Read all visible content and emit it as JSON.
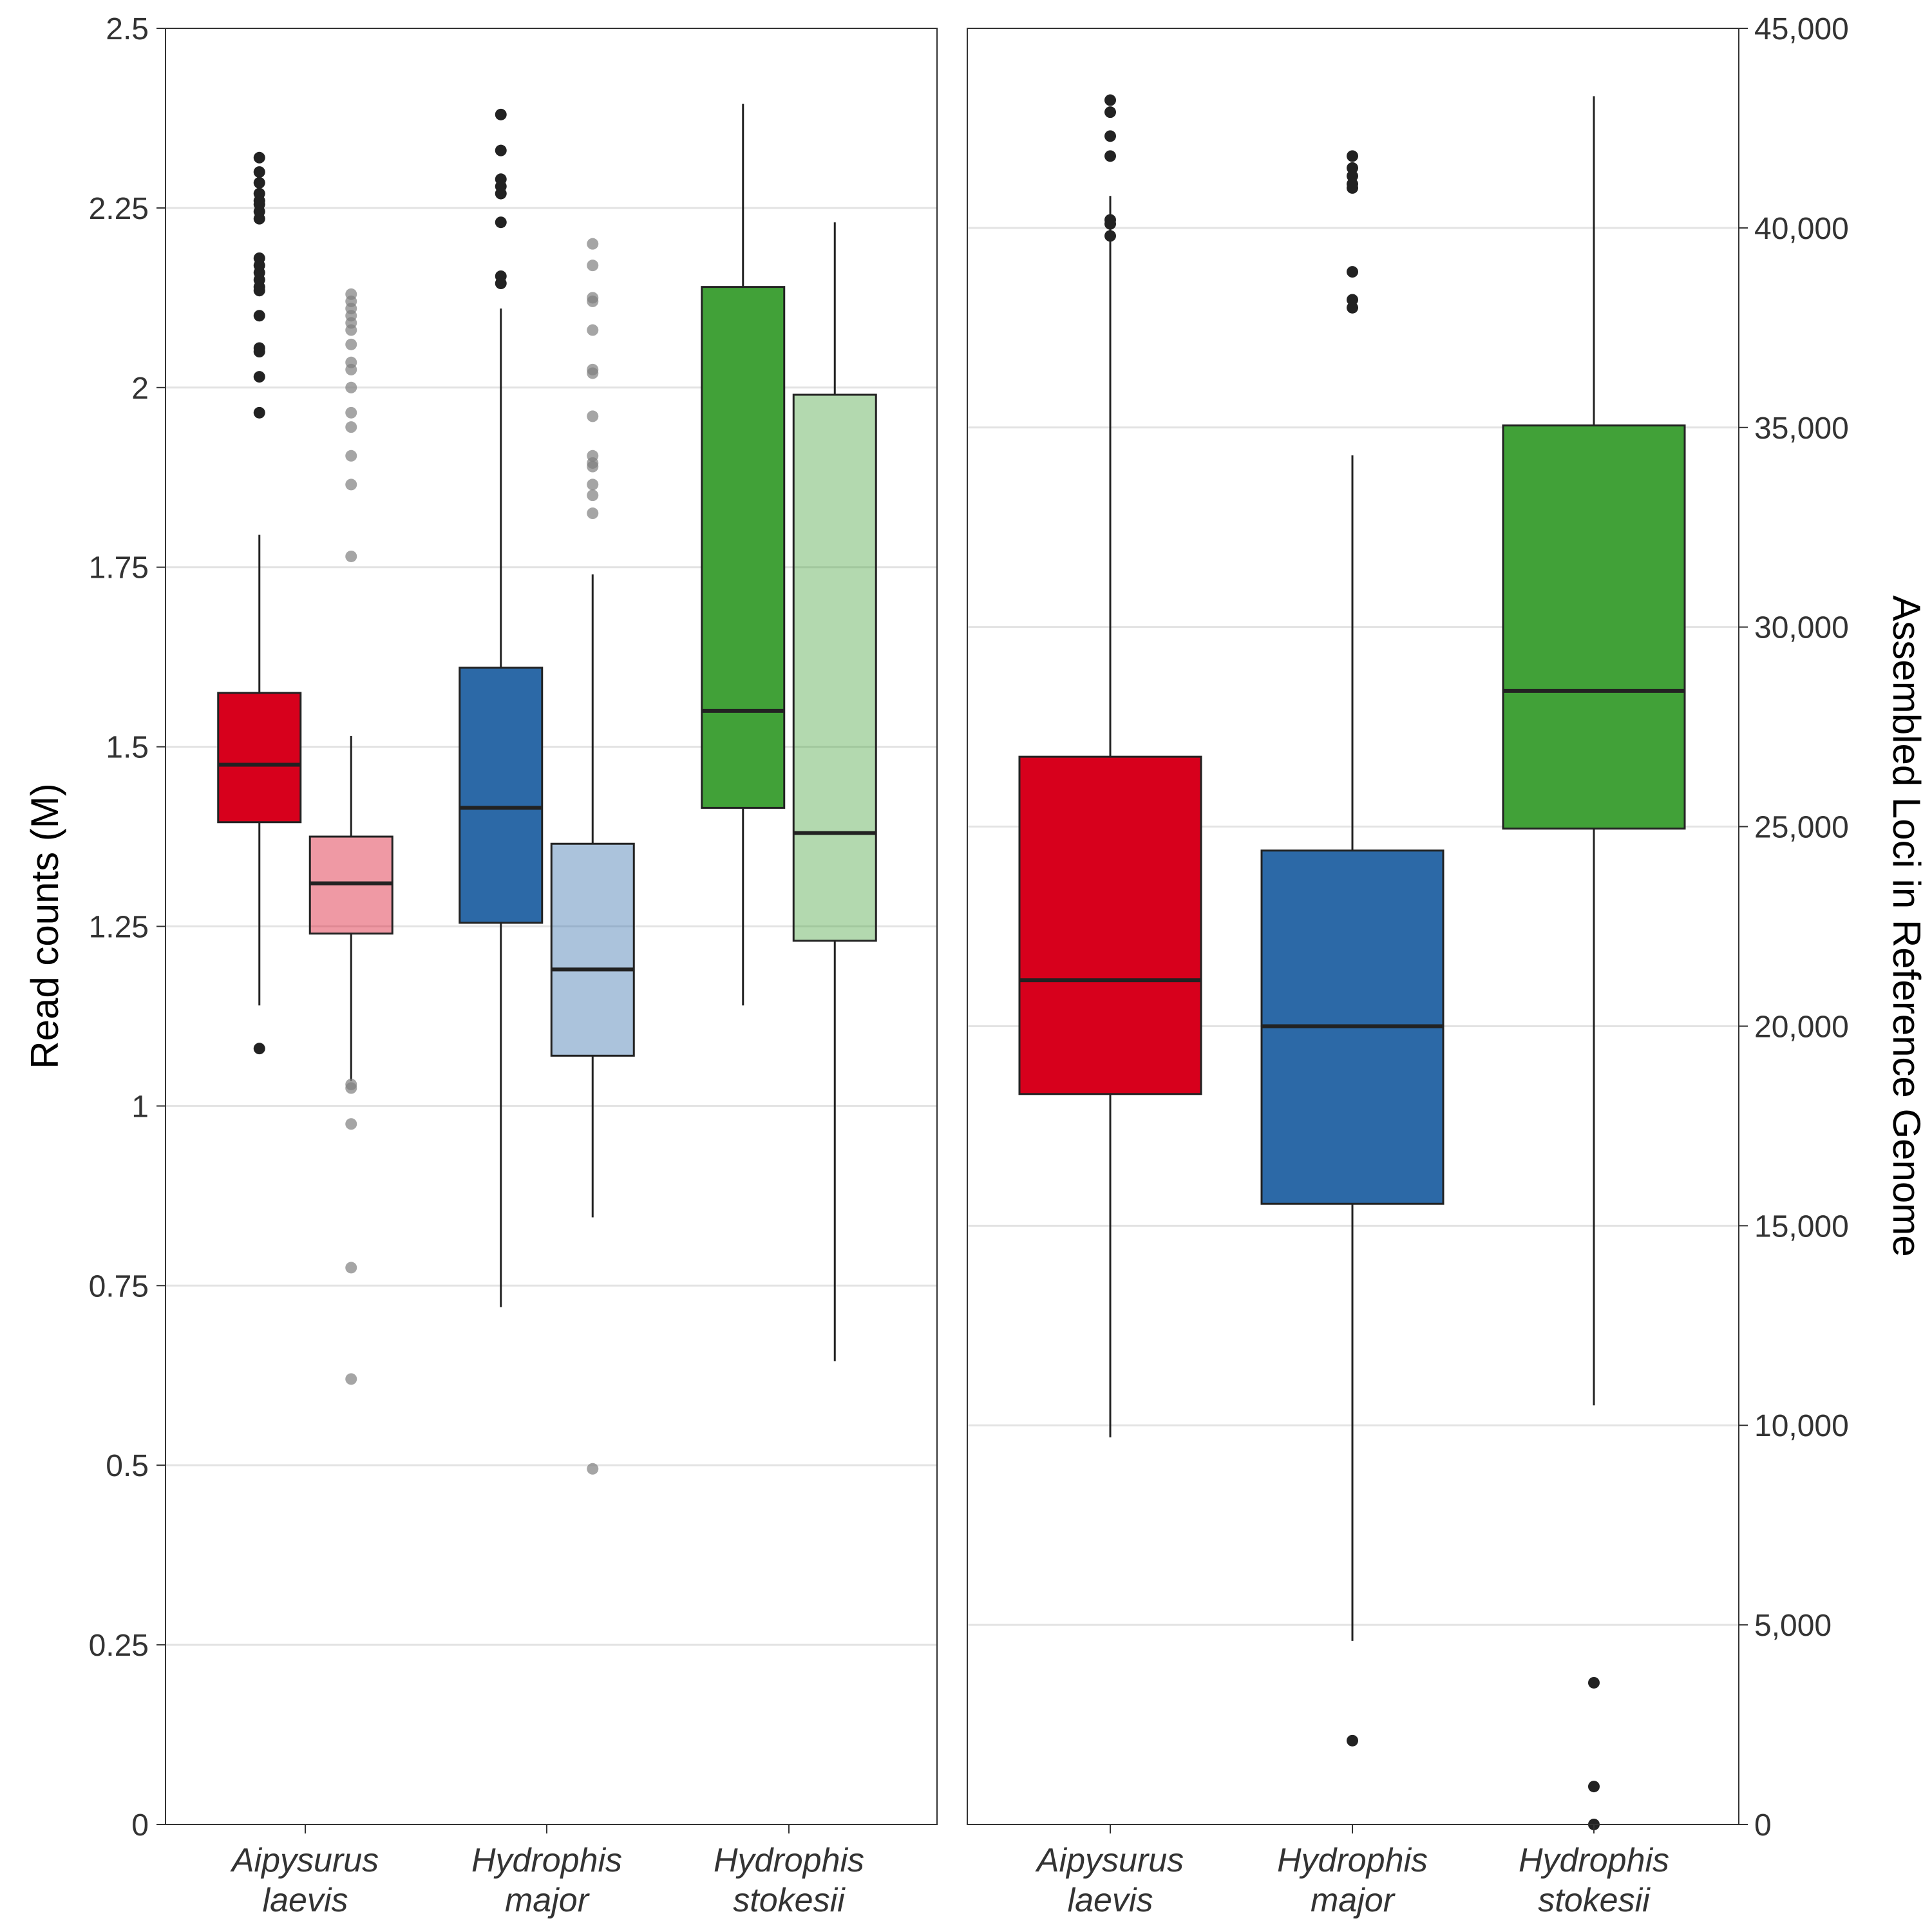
{
  "chart_data": [
    {
      "type": "box",
      "panel": "left",
      "title": "",
      "ylabel": "Read counts (M)",
      "ylim": [
        0,
        2.5
      ],
      "yticks": [
        "0",
        "0.25",
        "0.5",
        "0.75",
        "1",
        "1.25",
        "1.5",
        "1.75",
        "2",
        "2.25",
        "2.5"
      ],
      "ytick_values": [
        0,
        0.25,
        0.5,
        0.75,
        1,
        1.25,
        1.5,
        1.75,
        2,
        2.25,
        2.5
      ],
      "grid": true,
      "categories": [
        {
          "line1": "Aipysurus",
          "line2": "laevis"
        },
        {
          "line1": "Hydrophis",
          "line2": "major"
        },
        {
          "line1": "Hydrophis",
          "line2": "stokesii"
        }
      ],
      "series": [
        {
          "fill": [
            "#D7001C",
            "#2C69A7",
            "#41A138"
          ],
          "opacity": 1,
          "outlier_color": "#222222",
          "offset": -0.19,
          "boxes": [
            {
              "lower_whisker": 1.14,
              "q1": 1.395,
              "median": 1.475,
              "q3": 1.575,
              "upper_whisker": 1.795,
              "outliers": [
                1.08,
                1.965,
                2.015,
                2.05,
                2.055,
                2.1,
                2.135,
                2.14,
                2.15,
                2.16,
                2.17,
                2.18,
                2.235,
                2.245,
                2.255,
                2.26,
                2.27,
                2.285,
                2.3,
                2.32
              ]
            },
            {
              "lower_whisker": 0.72,
              "q1": 1.255,
              "median": 1.415,
              "q3": 1.61,
              "upper_whisker": 2.11,
              "outliers": [
                2.145,
                2.155,
                2.23,
                2.27,
                2.28,
                2.29,
                2.33,
                2.38
              ]
            },
            {
              "lower_whisker": 1.14,
              "q1": 1.415,
              "median": 1.55,
              "q3": 2.14,
              "upper_whisker": 2.395,
              "outliers": []
            }
          ]
        },
        {
          "fill": [
            "#D7001C",
            "#2C69A7",
            "#41A138"
          ],
          "opacity": 0.4,
          "outlier_color": "#7F7F7F",
          "offset": 0.19,
          "boxes": [
            {
              "lower_whisker": 1.035,
              "q1": 1.24,
              "median": 1.31,
              "q3": 1.375,
              "upper_whisker": 1.515,
              "outliers": [
                0.62,
                0.775,
                0.975,
                1.025,
                1.03,
                1.765,
                1.865,
                1.905,
                1.945,
                1.965,
                2.0,
                2.025,
                2.035,
                2.06,
                2.08,
                2.09,
                2.1,
                2.11,
                2.12,
                2.13
              ]
            },
            {
              "lower_whisker": 0.845,
              "q1": 1.07,
              "median": 1.19,
              "q3": 1.365,
              "upper_whisker": 1.74,
              "outliers": [
                0.495,
                1.825,
                1.85,
                1.865,
                1.89,
                1.895,
                1.905,
                1.96,
                2.02,
                2.025,
                2.08,
                2.12,
                2.125,
                2.17,
                2.2
              ]
            },
            {
              "lower_whisker": 0.645,
              "q1": 1.23,
              "median": 1.38,
              "q3": 1.99,
              "upper_whisker": 2.23,
              "outliers": []
            }
          ]
        }
      ]
    },
    {
      "type": "box",
      "panel": "right",
      "title": "",
      "ylabel": "Assembled Loci in Reference Genome",
      "ylim": [
        0,
        45000
      ],
      "yticks": [
        "0",
        "5,000",
        "10,000",
        "15,000",
        "20,000",
        "25,000",
        "30,000",
        "35,000",
        "40,000",
        "45,000"
      ],
      "ytick_values": [
        0,
        5000,
        10000,
        15000,
        20000,
        25000,
        30000,
        35000,
        40000,
        45000
      ],
      "grid": true,
      "categories": [
        {
          "line1": "Aipysurus",
          "line2": "laevis"
        },
        {
          "line1": "Hydrophis",
          "line2": "major"
        },
        {
          "line1": "Hydrophis",
          "line2": "stokesii"
        }
      ],
      "series": [
        {
          "fill": [
            "#D7001C",
            "#2C69A7",
            "#41A138"
          ],
          "opacity": 1,
          "outlier_color": "#222222",
          "offset": 0,
          "boxes": [
            {
              "lower_whisker": 9700,
              "q1": 18300,
              "median": 21150,
              "q3": 26750,
              "upper_whisker": 40800,
              "outliers": [
                39800,
                40100,
                40200,
                41800,
                42300,
                42900,
                43200
              ]
            },
            {
              "lower_whisker": 4600,
              "q1": 15550,
              "median": 20000,
              "q3": 24400,
              "upper_whisker": 34300,
              "outliers": [
                2100,
                38000,
                38200,
                38900,
                41000,
                41100,
                41300,
                41500,
                41800
              ]
            },
            {
              "lower_whisker": 10500,
              "q1": 24950,
              "median": 28400,
              "q3": 35050,
              "upper_whisker": 43300,
              "outliers": [
                0,
                950,
                3550
              ]
            }
          ]
        }
      ]
    }
  ]
}
